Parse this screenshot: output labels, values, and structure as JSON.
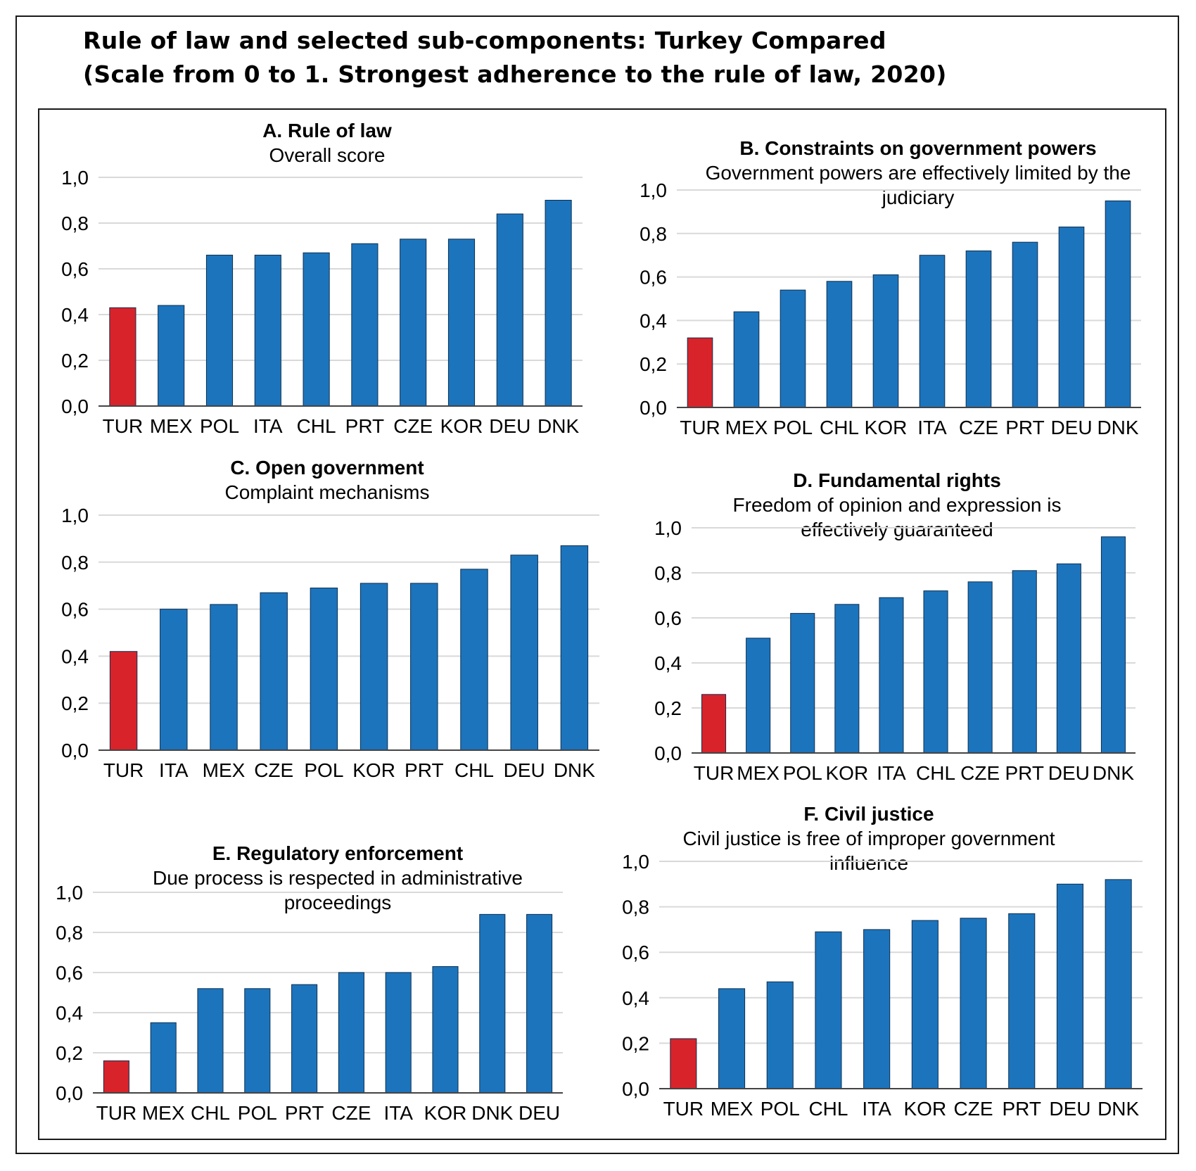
{
  "title_lines": [
    "Rule of law and selected sub-components: Turkey Compared",
    "(Scale from 0 to 1. Strongest adherence to the rule of law, 2020)"
  ],
  "colors": {
    "highlight": "#d9232b",
    "bar": "#1c74bd",
    "grid": "#d9d9d9",
    "axis": "#444444"
  },
  "chart_data": [
    {
      "type": "bar",
      "title": "A. Rule of law",
      "subtitle": "Overall score",
      "categories": [
        "TUR",
        "MEX",
        "POL",
        "ITA",
        "CHL",
        "PRT",
        "CZE",
        "KOR",
        "DEU",
        "DNK"
      ],
      "values": [
        0.43,
        0.44,
        0.66,
        0.66,
        0.67,
        0.71,
        0.73,
        0.73,
        0.84,
        0.9
      ],
      "highlight": "TUR",
      "y_ticks": [
        "0,0",
        "0,2",
        "0,4",
        "0,6",
        "0,8",
        "1,0"
      ],
      "ylim": [
        0,
        1
      ],
      "grid": true
    },
    {
      "type": "bar",
      "title": "B. Constraints on government powers",
      "subtitle": "Government powers are effectively limited by the judiciary",
      "categories": [
        "TUR",
        "MEX",
        "POL",
        "CHL",
        "KOR",
        "ITA",
        "CZE",
        "PRT",
        "DEU",
        "DNK"
      ],
      "values": [
        0.32,
        0.44,
        0.54,
        0.58,
        0.61,
        0.7,
        0.72,
        0.76,
        0.83,
        0.95
      ],
      "highlight": "TUR",
      "y_ticks": [
        "0,0",
        "0,2",
        "0,4",
        "0,6",
        "0,8",
        "1,0"
      ],
      "ylim": [
        0,
        1
      ],
      "grid": true
    },
    {
      "type": "bar",
      "title": "C. Open government",
      "subtitle": "Complaint mechanisms",
      "categories": [
        "TUR",
        "ITA",
        "MEX",
        "CZE",
        "POL",
        "KOR",
        "PRT",
        "CHL",
        "DEU",
        "DNK"
      ],
      "values": [
        0.42,
        0.6,
        0.62,
        0.67,
        0.69,
        0.71,
        0.71,
        0.77,
        0.83,
        0.87
      ],
      "highlight": "TUR",
      "y_ticks": [
        "0,0",
        "0,2",
        "0,4",
        "0,6",
        "0,8",
        "1,0"
      ],
      "ylim": [
        0,
        1
      ],
      "grid": true
    },
    {
      "type": "bar",
      "title": "D. Fundamental rights",
      "subtitle": "Freedom of opinion and expression is effectively guaranteed",
      "categories": [
        "TUR",
        "MEX",
        "POL",
        "KOR",
        "ITA",
        "CHL",
        "CZE",
        "PRT",
        "DEU",
        "DNK"
      ],
      "values": [
        0.26,
        0.51,
        0.62,
        0.66,
        0.69,
        0.72,
        0.76,
        0.81,
        0.84,
        0.96
      ],
      "highlight": "TUR",
      "y_ticks": [
        "0,0",
        "0,2",
        "0,4",
        "0,6",
        "0,8",
        "1,0"
      ],
      "ylim": [
        0,
        1
      ],
      "grid": true
    },
    {
      "type": "bar",
      "title": "E. Regulatory enforcement",
      "subtitle": "Due process is respected in administrative proceedings",
      "categories": [
        "TUR",
        "MEX",
        "CHL",
        "POL",
        "PRT",
        "CZE",
        "ITA",
        "KOR",
        "DNK",
        "DEU"
      ],
      "values": [
        0.16,
        0.35,
        0.52,
        0.52,
        0.54,
        0.6,
        0.6,
        0.63,
        0.89,
        0.89
      ],
      "highlight": "TUR",
      "y_ticks": [
        "0,0",
        "0,2",
        "0,4",
        "0,6",
        "0,8",
        "1,0"
      ],
      "ylim": [
        0,
        1
      ],
      "grid": true
    },
    {
      "type": "bar",
      "title": "F. Civil justice",
      "subtitle": "Civil justice is free of improper government influence",
      "categories": [
        "TUR",
        "MEX",
        "POL",
        "CHL",
        "ITA",
        "KOR",
        "CZE",
        "PRT",
        "DEU",
        "DNK"
      ],
      "values": [
        0.22,
        0.44,
        0.47,
        0.69,
        0.7,
        0.74,
        0.75,
        0.77,
        0.9,
        0.92
      ],
      "highlight": "TUR",
      "y_ticks": [
        "0,0",
        "0,2",
        "0,4",
        "0,6",
        "0,8",
        "1,0"
      ],
      "ylim": [
        0,
        1
      ],
      "grid": true
    }
  ]
}
